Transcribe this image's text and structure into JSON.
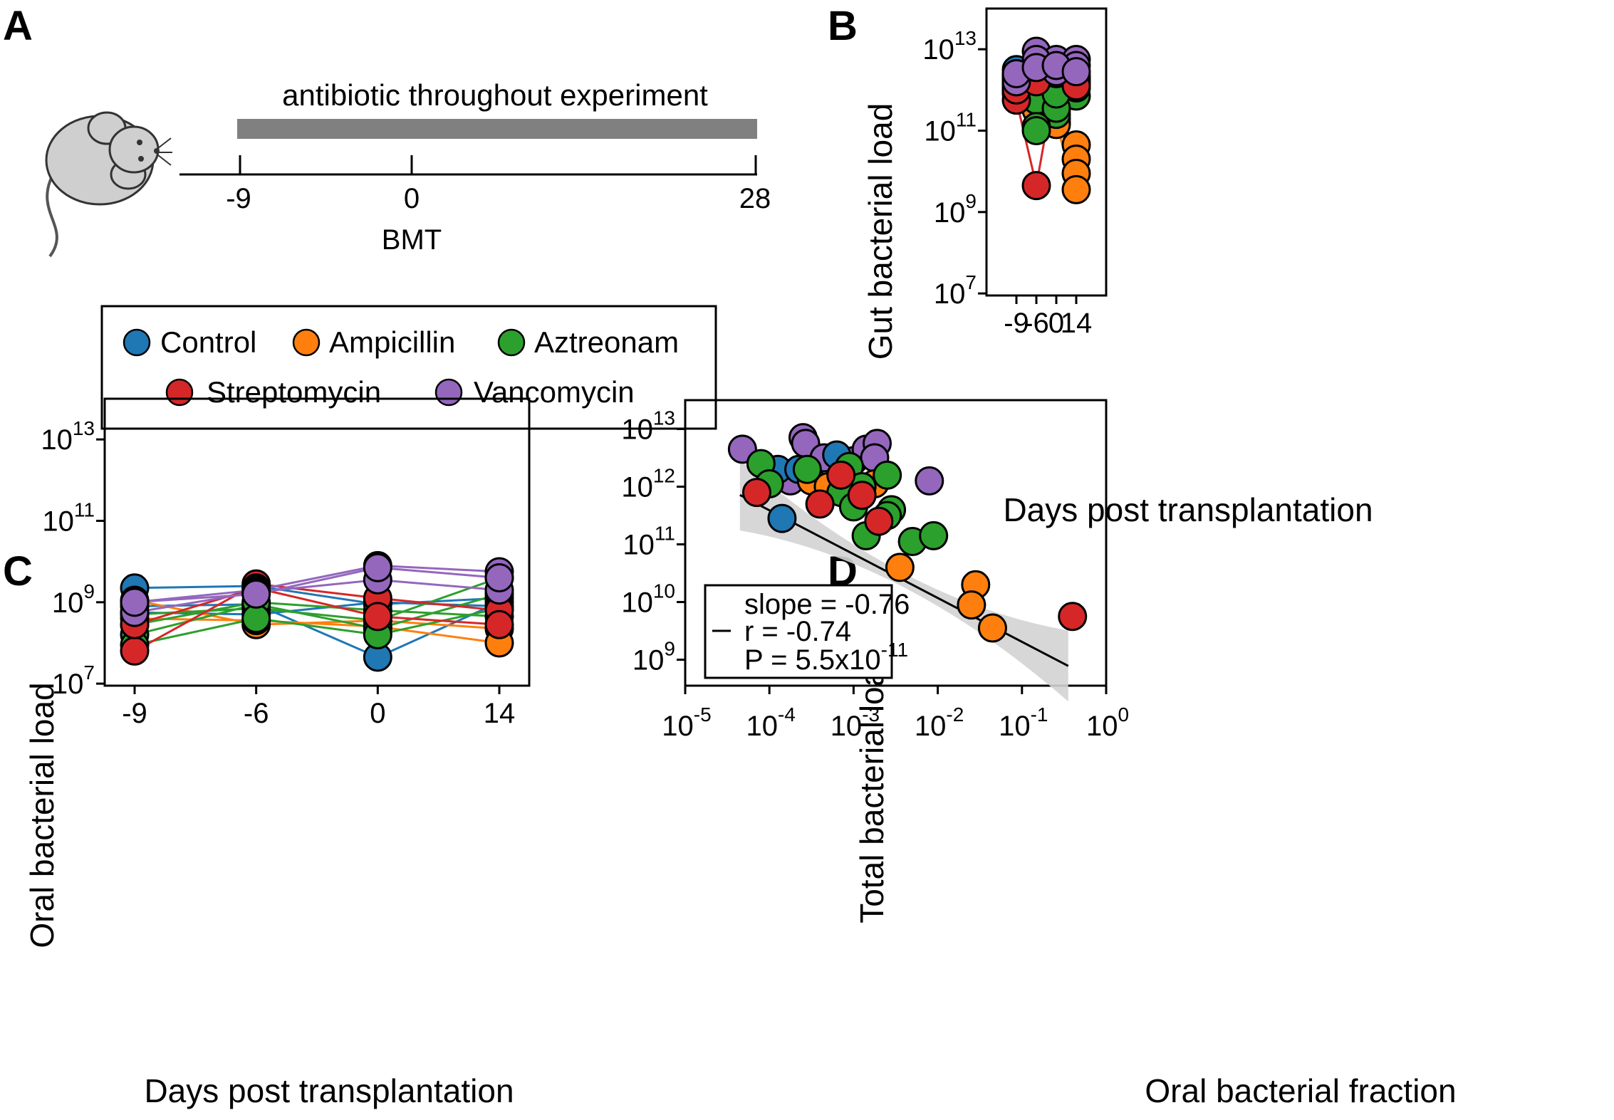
{
  "colors": {
    "Control": "#1f77b4",
    "Ampicillin": "#ff7f0e",
    "Aztreonam": "#2ca02c",
    "Streptomycin": "#d62728",
    "Vancomycin": "#9467bd",
    "timeline_bar": "#808080",
    "ci_band": "#d3d3d3"
  },
  "panel_a": {
    "letter": "A",
    "bar_label": "antibiotic throughout experiment",
    "ticks": [
      "-9",
      "0",
      "28"
    ],
    "event_label": "BMT",
    "mouse_icon": "mouse-icon",
    "legend": [
      "Control",
      "Ampicillin",
      "Aztreonam",
      "Streptomycin",
      "Vancomycin"
    ]
  },
  "chart_data": [
    {
      "panel": "B",
      "type": "line",
      "xlabel": "Days post transplantation",
      "ylabel": "Gut bacterial load",
      "categories": [
        "-9",
        "-6",
        "0",
        "14"
      ],
      "yscale": "log",
      "yticks": [
        {
          "base": "10",
          "exp": "13"
        },
        {
          "base": "10",
          "exp": "11"
        },
        {
          "base": "10",
          "exp": "9"
        },
        {
          "base": "10",
          "exp": "7"
        }
      ],
      "ylim_log10": [
        6.95,
        14.0
      ],
      "grid": false,
      "series": [
        {
          "group": "Control",
          "values_log10": [
            12.5,
            12.4,
            12.0,
            12.2
          ]
        },
        {
          "group": "Control",
          "values_log10": [
            12.35,
            12.2,
            11.9,
            12.3
          ]
        },
        {
          "group": "Control",
          "values_log10": [
            12.2,
            12.5,
            11.7,
            12.15
          ]
        },
        {
          "group": "Control",
          "values_log10": [
            12.05,
            12.35,
            12.25,
            12.3
          ]
        },
        {
          "group": "Ampicillin",
          "values_log10": [
            12.1,
            11.9,
            11.2,
            10.65
          ]
        },
        {
          "group": "Ampicillin",
          "values_log10": [
            12.25,
            11.6,
            11.5,
            10.3
          ]
        },
        {
          "group": "Ampicillin",
          "values_log10": [
            11.95,
            11.5,
            11.3,
            9.95
          ]
        },
        {
          "group": "Ampicillin",
          "values_log10": [
            12.0,
            11.8,
            11.15,
            9.55
          ]
        },
        {
          "group": "Aztreonam",
          "values_log10": [
            12.35,
            12.1,
            11.7,
            12.35
          ]
        },
        {
          "group": "Aztreonam",
          "values_log10": [
            11.9,
            11.75,
            11.4,
            11.85
          ]
        },
        {
          "group": "Aztreonam",
          "values_log10": [
            12.05,
            11.1,
            11.55,
            12.05
          ]
        },
        {
          "group": "Aztreonam",
          "values_log10": [
            12.15,
            11.0,
            11.9,
            12.2
          ]
        },
        {
          "group": "Streptomycin",
          "values_log10": [
            11.75,
            9.65,
            12.4,
            12.25
          ]
        },
        {
          "group": "Streptomycin",
          "values_log10": [
            12.0,
            12.2,
            12.45,
            12.1
          ]
        },
        {
          "group": "Vancomycin",
          "values_log10": [
            12.3,
            12.95,
            12.75,
            12.75
          ]
        },
        {
          "group": "Vancomycin",
          "values_log10": [
            12.2,
            12.75,
            12.45,
            12.6
          ]
        },
        {
          "group": "Vancomycin",
          "values_log10": [
            12.4,
            12.55,
            12.6,
            12.45
          ]
        }
      ]
    },
    {
      "panel": "C",
      "type": "line",
      "xlabel": "Days post transplantation",
      "ylabel": "Oral bacterial load",
      "categories": [
        "-9",
        "-6",
        "0",
        "14"
      ],
      "yscale": "log",
      "yticks": [
        {
          "base": "10",
          "exp": "13"
        },
        {
          "base": "10",
          "exp": "11"
        },
        {
          "base": "10",
          "exp": "9"
        },
        {
          "base": "10",
          "exp": "7"
        }
      ],
      "ylim_log10": [
        6.95,
        14.0
      ],
      "grid": false,
      "series": [
        {
          "group": "Control",
          "values_log10": [
            9.35,
            9.4,
            8.95,
            9.1
          ]
        },
        {
          "group": "Control",
          "values_log10": [
            8.9,
            8.95,
            7.65,
            9.0
          ]
        },
        {
          "group": "Control",
          "values_log10": [
            8.75,
            8.7,
            9.0,
            8.9
          ]
        },
        {
          "group": "Ampicillin",
          "values_log10": [
            9.05,
            8.45,
            8.55,
            8.35
          ]
        },
        {
          "group": "Ampicillin",
          "values_log10": [
            8.6,
            8.55,
            8.4,
            8.0
          ]
        },
        {
          "group": "Aztreonam",
          "values_log10": [
            8.7,
            8.85,
            8.55,
            9.6
          ]
        },
        {
          "group": "Aztreonam",
          "values_log10": [
            8.2,
            8.95,
            8.35,
            9.2
          ]
        },
        {
          "group": "Aztreonam",
          "values_log10": [
            8.45,
            9.0,
            8.8,
            8.65
          ]
        },
        {
          "group": "Aztreonam",
          "values_log10": [
            7.95,
            8.6,
            8.2,
            8.85
          ]
        },
        {
          "group": "Streptomycin",
          "values_log10": [
            7.8,
            9.45,
            9.1,
            8.8
          ]
        },
        {
          "group": "Streptomycin",
          "values_log10": [
            8.45,
            9.35,
            8.65,
            8.45
          ]
        },
        {
          "group": "Vancomycin",
          "values_log10": [
            9.0,
            9.3,
            9.9,
            9.75
          ]
        },
        {
          "group": "Vancomycin",
          "values_log10": [
            8.75,
            9.25,
            9.55,
            9.3
          ]
        },
        {
          "group": "Vancomycin",
          "values_log10": [
            9.0,
            9.2,
            9.85,
            9.6
          ]
        }
      ]
    },
    {
      "panel": "D",
      "type": "scatter",
      "xlabel": "Oral bacterial fraction",
      "ylabel": "Total bacterial load",
      "xscale": "log",
      "yscale": "log",
      "xticks": [
        {
          "base": "10",
          "exp": "-5"
        },
        {
          "base": "10",
          "exp": "-4"
        },
        {
          "base": "10",
          "exp": "-3"
        },
        {
          "base": "10",
          "exp": "-2"
        },
        {
          "base": "10",
          "exp": "-1"
        },
        {
          "base": "10",
          "exp": "0"
        }
      ],
      "yticks": [
        {
          "base": "10",
          "exp": "13"
        },
        {
          "base": "10",
          "exp": "12"
        },
        {
          "base": "10",
          "exp": "11"
        },
        {
          "base": "10",
          "exp": "10"
        },
        {
          "base": "10",
          "exp": "9"
        }
      ],
      "xlim_log10": [
        -5.0,
        0.0
      ],
      "ylim_log10": [
        8.55,
        13.5
      ],
      "grid": false,
      "fit": {
        "slope": -0.76,
        "intercept": 8.55,
        "x_range_log10": [
          -4.35,
          -0.45
        ]
      },
      "annotation": {
        "slope": "slope = -0.76",
        "r": "r = -0.74",
        "p_text": "P = 5.5x10",
        "p_exp": "-11"
      },
      "points": [
        {
          "group": "Vancomycin",
          "x_log10": -4.32,
          "y_log10": 12.65
        },
        {
          "group": "Vancomycin",
          "x_log10": -3.6,
          "y_log10": 12.85
        },
        {
          "group": "Vancomycin",
          "x_log10": -3.57,
          "y_log10": 12.75
        },
        {
          "group": "Vancomycin",
          "x_log10": -3.35,
          "y_log10": 12.5
        },
        {
          "group": "Vancomycin",
          "x_log10": -3.0,
          "y_log10": 12.45
        },
        {
          "group": "Vancomycin",
          "x_log10": -2.85,
          "y_log10": 12.65
        },
        {
          "group": "Vancomycin",
          "x_log10": -2.72,
          "y_log10": 12.75
        },
        {
          "group": "Vancomycin",
          "x_log10": -2.75,
          "y_log10": 12.5
        },
        {
          "group": "Vancomycin",
          "x_log10": -3.75,
          "y_log10": 12.1
        },
        {
          "group": "Vancomycin",
          "x_log10": -2.1,
          "y_log10": 12.1
        },
        {
          "group": "Control",
          "x_log10": -3.9,
          "y_log10": 12.3
        },
        {
          "group": "Control",
          "x_log10": -3.65,
          "y_log10": 12.3
        },
        {
          "group": "Control",
          "x_log10": -3.2,
          "y_log10": 12.55
        },
        {
          "group": "Control",
          "x_log10": -3.1,
          "y_log10": 12.0
        },
        {
          "group": "Control",
          "x_log10": -2.95,
          "y_log10": 11.8
        },
        {
          "group": "Control",
          "x_log10": -3.85,
          "y_log10": 11.45
        },
        {
          "group": "Ampicillin",
          "x_log10": -3.5,
          "y_log10": 12.1
        },
        {
          "group": "Ampicillin",
          "x_log10": -3.3,
          "y_log10": 12.0
        },
        {
          "group": "Ampicillin",
          "x_log10": -2.75,
          "y_log10": 12.05
        },
        {
          "group": "Ampicillin",
          "x_log10": -2.45,
          "y_log10": 10.6
        },
        {
          "group": "Ampicillin",
          "x_log10": -1.55,
          "y_log10": 10.3
        },
        {
          "group": "Ampicillin",
          "x_log10": -1.6,
          "y_log10": 9.95
        },
        {
          "group": "Ampicillin",
          "x_log10": -1.35,
          "y_log10": 9.55
        },
        {
          "group": "Aztreonam",
          "x_log10": -4.1,
          "y_log10": 12.4
        },
        {
          "group": "Aztreonam",
          "x_log10": -4.0,
          "y_log10": 12.05
        },
        {
          "group": "Aztreonam",
          "x_log10": -3.55,
          "y_log10": 12.3
        },
        {
          "group": "Aztreonam",
          "x_log10": -3.05,
          "y_log10": 12.35
        },
        {
          "group": "Aztreonam",
          "x_log10": -3.0,
          "y_log10": 11.95
        },
        {
          "group": "Aztreonam",
          "x_log10": -2.9,
          "y_log10": 12.0
        },
        {
          "group": "Aztreonam",
          "x_log10": -3.15,
          "y_log10": 11.9
        },
        {
          "group": "Aztreonam",
          "x_log10": -3.0,
          "y_log10": 11.65
        },
        {
          "group": "Aztreonam",
          "x_log10": -2.6,
          "y_log10": 12.2
        },
        {
          "group": "Aztreonam",
          "x_log10": -2.55,
          "y_log10": 11.6
        },
        {
          "group": "Aztreonam",
          "x_log10": -2.6,
          "y_log10": 11.5
        },
        {
          "group": "Aztreonam",
          "x_log10": -2.85,
          "y_log10": 11.15
        },
        {
          "group": "Aztreonam",
          "x_log10": -2.3,
          "y_log10": 11.05
        },
        {
          "group": "Aztreonam",
          "x_log10": -2.05,
          "y_log10": 11.15
        },
        {
          "group": "Streptomycin",
          "x_log10": -4.15,
          "y_log10": 11.9
        },
        {
          "group": "Streptomycin",
          "x_log10": -3.4,
          "y_log10": 11.7
        },
        {
          "group": "Streptomycin",
          "x_log10": -3.15,
          "y_log10": 12.2
        },
        {
          "group": "Streptomycin",
          "x_log10": -2.9,
          "y_log10": 11.85
        },
        {
          "group": "Streptomycin",
          "x_log10": -2.7,
          "y_log10": 11.4
        },
        {
          "group": "Streptomycin",
          "x_log10": -0.4,
          "y_log10": 9.75
        }
      ]
    }
  ]
}
